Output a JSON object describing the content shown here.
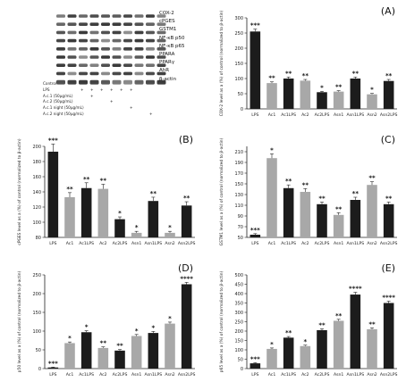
{
  "blot": {
    "proteins": [
      "COX-2",
      "cPGES",
      "GSTM1",
      "NF-κB p50",
      "NF-κB p65",
      "PPARA",
      "PPARγ",
      "AhR",
      "β-actin"
    ],
    "conditions": [
      "Control",
      "LPS",
      "A.c.1 (50μg/mL)",
      "A.c.2 (50μg/mL)",
      "A.c.1 night (50μg/mL)",
      "A.c.2 night (50μg/mL)"
    ],
    "conditions_plus_marks": "+"
  },
  "chart_data": [
    {
      "panel": "(A)",
      "type": "bar",
      "ylabel": "COX-2 level as a (%) of control (normalized to β-actin)",
      "ylim": [
        0,
        300
      ],
      "yticks": [
        0,
        50,
        100,
        150,
        200,
        250,
        300
      ],
      "categories": [
        "LPS",
        "Ac1",
        "Ac1LPS",
        "Ac2",
        "Ac2LPS",
        "Asn1",
        "Asn1LPS",
        "Asn2",
        "Asn2LPS"
      ],
      "values": [
        255,
        85,
        100,
        93,
        55,
        57,
        100,
        48,
        92
      ],
      "errors": [
        8,
        4,
        5,
        4,
        3,
        3,
        5,
        3,
        5
      ],
      "colors": [
        "dark",
        "light",
        "dark",
        "light",
        "dark",
        "light",
        "dark",
        "light",
        "dark"
      ],
      "significance": [
        "***",
        "**",
        "**",
        "**",
        "*",
        "**",
        "**",
        "*",
        "**"
      ]
    },
    {
      "panel": "(B)",
      "type": "bar",
      "ylabel": "cPGES level as a (%) of control (normalized to β-actin)",
      "ylim": [
        80,
        200
      ],
      "yticks": [
        80,
        100,
        120,
        140,
        160,
        180,
        200
      ],
      "categories": [
        "LPS",
        "Ac1",
        "Ac1LPS",
        "Ac2",
        "Ac2LPS",
        "Asn1",
        "Asn1LPS",
        "Asn2",
        "Asn2LPS"
      ],
      "values": [
        193,
        133,
        145,
        144,
        104,
        86,
        128,
        86,
        122
      ],
      "errors": [
        10,
        6,
        7,
        6,
        3,
        2,
        5,
        2,
        5
      ],
      "colors": [
        "dark",
        "light",
        "dark",
        "light",
        "dark",
        "light",
        "dark",
        "light",
        "dark"
      ],
      "significance": [
        "***",
        "**",
        "**",
        "**",
        "*",
        "*",
        "**",
        "*",
        "**"
      ]
    },
    {
      "panel": "(C)",
      "type": "bar",
      "ylabel": "GSTM1 level as a (%) of control (normalized to β-actin)",
      "ylim": [
        50,
        220
      ],
      "yticks": [
        50,
        70,
        90,
        110,
        130,
        150,
        170,
        190,
        210
      ],
      "categories": [
        "LPS",
        "Ac1",
        "Ac1LPS",
        "Ac2",
        "Ac2LPS",
        "Asn1",
        "Asn1LPS",
        "Asn2",
        "Asn2LPS"
      ],
      "values": [
        55,
        198,
        142,
        135,
        112,
        92,
        120,
        148,
        112
      ],
      "errors": [
        2,
        8,
        6,
        6,
        4,
        4,
        5,
        6,
        4
      ],
      "colors": [
        "dark",
        "light",
        "dark",
        "light",
        "dark",
        "light",
        "dark",
        "light",
        "dark"
      ],
      "significance": [
        "***",
        "*",
        "**",
        "**",
        "**",
        "**",
        "**",
        "**",
        "**"
      ]
    },
    {
      "panel": "(D)",
      "type": "bar",
      "ylabel": "p50 level as a (%) of control (normalized to β-actin)",
      "ylim": [
        0,
        250
      ],
      "yticks": [
        0,
        50,
        100,
        150,
        200,
        250
      ],
      "categories": [
        "LPS",
        "Ac1",
        "Ac1LPS",
        "Ac2",
        "Ac2LPS",
        "Asn1",
        "Asn1LPS",
        "Asn2",
        "Asn2LPS"
      ],
      "values": [
        3,
        68,
        97,
        55,
        48,
        87,
        95,
        120,
        225
      ],
      "errors": [
        1,
        3,
        4,
        3,
        3,
        4,
        4,
        4,
        5
      ],
      "colors": [
        "dark",
        "light",
        "dark",
        "light",
        "dark",
        "light",
        "dark",
        "light",
        "dark"
      ],
      "significance": [
        "***",
        "*",
        "*",
        "**",
        "**",
        "*",
        "*",
        "*",
        "****"
      ]
    },
    {
      "panel": "(E)",
      "type": "bar",
      "ylabel": "p65 level as a (%) of control (normalized to β-actin)",
      "ylim": [
        0,
        500
      ],
      "yticks": [
        0,
        50,
        100,
        150,
        200,
        250,
        300,
        350,
        400,
        450,
        500
      ],
      "categories": [
        "LPS",
        "Ac1",
        "Ac1LPS",
        "Ac2",
        "Ac2LPS",
        "Asn1",
        "Asn1LPS",
        "Asn2",
        "Asn2LPS"
      ],
      "values": [
        28,
        105,
        165,
        120,
        205,
        255,
        395,
        210,
        350
      ],
      "errors": [
        3,
        5,
        6,
        5,
        7,
        8,
        12,
        7,
        10
      ],
      "colors": [
        "dark",
        "light",
        "dark",
        "light",
        "dark",
        "light",
        "dark",
        "light",
        "dark"
      ],
      "significance": [
        "***",
        "*",
        "**",
        "*",
        "**",
        "**",
        "****",
        "**",
        "****"
      ]
    }
  ],
  "colors": {
    "dark": "#1c1c1c",
    "light": "#a8a8a8",
    "blot_band": "#3a3a3a"
  }
}
